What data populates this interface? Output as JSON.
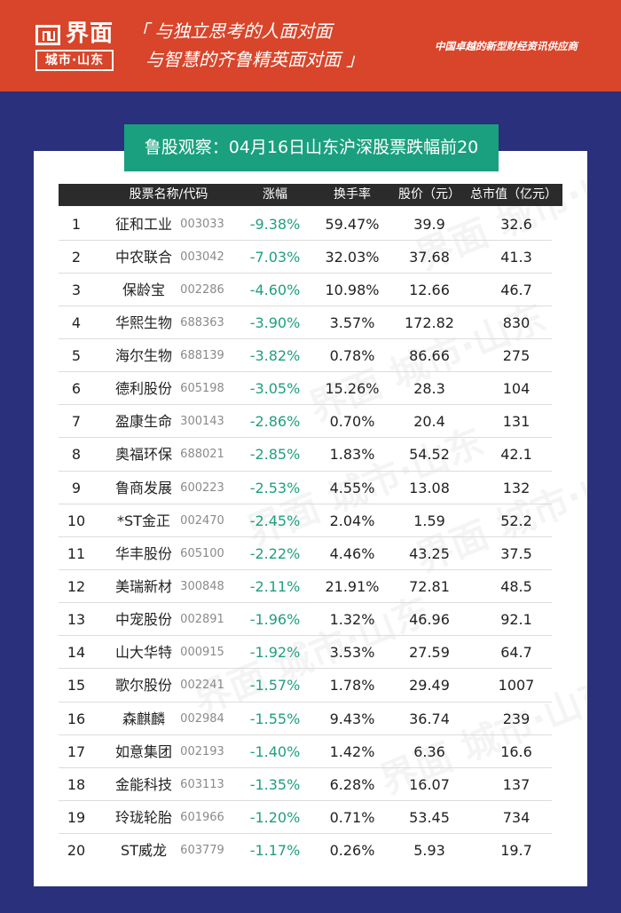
{
  "header": {
    "logo_text": "界面",
    "logo_sub": "城市·山东",
    "slogan_line1": "「 与独立思考的人面对面",
    "slogan_line2": "与智慧的齐鲁精英面对面 」",
    "tagline": "中国卓越的新型财经资讯供应商"
  },
  "title": "鲁股观察：04月16日山东沪深股票跌幅前20",
  "table": {
    "columns": {
      "name_code": "股票名称/代码",
      "change": "涨幅",
      "turnover": "换手率",
      "price": "股价（元）",
      "market_cap": "总市值（亿元）"
    },
    "rows": [
      {
        "rank": "1",
        "name": "征和工业",
        "code": "003033",
        "change": "-9.38%",
        "turnover": "59.47%",
        "price": "39.9",
        "market_cap": "32.6"
      },
      {
        "rank": "2",
        "name": "中农联合",
        "code": "003042",
        "change": "-7.03%",
        "turnover": "32.03%",
        "price": "37.68",
        "market_cap": "41.3"
      },
      {
        "rank": "3",
        "name": "保龄宝",
        "code": "002286",
        "change": "-4.60%",
        "turnover": "10.98%",
        "price": "12.66",
        "market_cap": "46.7"
      },
      {
        "rank": "4",
        "name": "华熙生物",
        "code": "688363",
        "change": "-3.90%",
        "turnover": "3.57%",
        "price": "172.82",
        "market_cap": "830"
      },
      {
        "rank": "5",
        "name": "海尔生物",
        "code": "688139",
        "change": "-3.82%",
        "turnover": "0.78%",
        "price": "86.66",
        "market_cap": "275"
      },
      {
        "rank": "6",
        "name": "德利股份",
        "code": "605198",
        "change": "-3.05%",
        "turnover": "15.26%",
        "price": "28.3",
        "market_cap": "104"
      },
      {
        "rank": "7",
        "name": "盈康生命",
        "code": "300143",
        "change": "-2.86%",
        "turnover": "0.70%",
        "price": "20.4",
        "market_cap": "131"
      },
      {
        "rank": "8",
        "name": "奥福环保",
        "code": "688021",
        "change": "-2.85%",
        "turnover": "1.83%",
        "price": "54.52",
        "market_cap": "42.1"
      },
      {
        "rank": "9",
        "name": "鲁商发展",
        "code": "600223",
        "change": "-2.53%",
        "turnover": "4.55%",
        "price": "13.08",
        "market_cap": "132"
      },
      {
        "rank": "10",
        "name": "*ST金正",
        "code": "002470",
        "change": "-2.45%",
        "turnover": "2.04%",
        "price": "1.59",
        "market_cap": "52.2"
      },
      {
        "rank": "11",
        "name": "华丰股份",
        "code": "605100",
        "change": "-2.22%",
        "turnover": "4.46%",
        "price": "43.25",
        "market_cap": "37.5"
      },
      {
        "rank": "12",
        "name": "美瑞新材",
        "code": "300848",
        "change": "-2.11%",
        "turnover": "21.91%",
        "price": "72.81",
        "market_cap": "48.5"
      },
      {
        "rank": "13",
        "name": "中宠股份",
        "code": "002891",
        "change": "-1.96%",
        "turnover": "1.32%",
        "price": "46.96",
        "market_cap": "92.1"
      },
      {
        "rank": "14",
        "name": "山大华特",
        "code": "000915",
        "change": "-1.92%",
        "turnover": "3.53%",
        "price": "27.59",
        "market_cap": "64.7"
      },
      {
        "rank": "15",
        "name": "歌尔股份",
        "code": "002241",
        "change": "-1.57%",
        "turnover": "1.78%",
        "price": "29.49",
        "market_cap": "1007"
      },
      {
        "rank": "16",
        "name": "森麒麟",
        "code": "002984",
        "change": "-1.55%",
        "turnover": "9.43%",
        "price": "36.74",
        "market_cap": "239"
      },
      {
        "rank": "17",
        "name": "如意集团",
        "code": "002193",
        "change": "-1.40%",
        "turnover": "1.42%",
        "price": "6.36",
        "market_cap": "16.6"
      },
      {
        "rank": "18",
        "name": "金能科技",
        "code": "603113",
        "change": "-1.35%",
        "turnover": "6.28%",
        "price": "16.07",
        "market_cap": "137"
      },
      {
        "rank": "19",
        "name": "玲珑轮胎",
        "code": "601966",
        "change": "-1.20%",
        "turnover": "0.71%",
        "price": "53.45",
        "market_cap": "734"
      },
      {
        "rank": "20",
        "name": "ST威龙",
        "code": "603779",
        "change": "-1.17%",
        "turnover": "0.26%",
        "price": "5.93",
        "market_cap": "19.7"
      }
    ]
  },
  "colors": {
    "banner": "#d8452a",
    "background": "#2a307b",
    "title_bg": "#1aa07f",
    "change_text": "#1f9e80",
    "header_bg": "#2b2b2b"
  },
  "watermark": "界面 城市·山东"
}
